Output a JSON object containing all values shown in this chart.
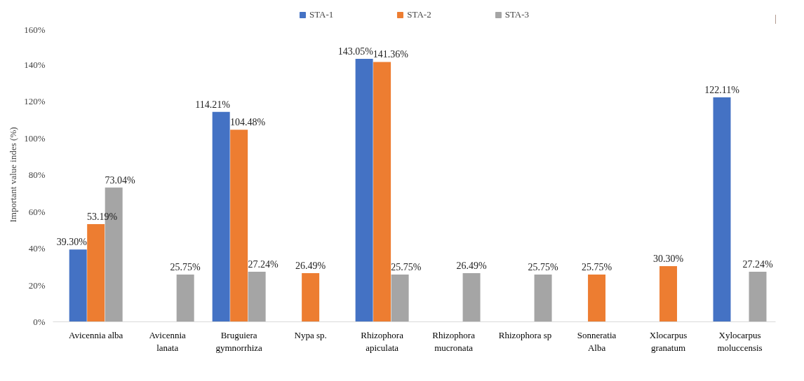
{
  "chart_data": {
    "type": "bar",
    "ylabel": "Important value indes (%)",
    "categories": [
      "Avicennia alba",
      "Avicennia lanata",
      "Bruguiera gymnorrhiza",
      "Nypa sp.",
      "Rhizophora apiculata",
      "Rhizophora mucronata",
      "Rhizophora sp",
      "Sonneratia Alba",
      "Xlocarpus granatum",
      "Xylocarpus moluccensis"
    ],
    "series": [
      {
        "name": "STA-1",
        "color": "#4472c4",
        "values": [
          39.3,
          null,
          114.21,
          null,
          143.05,
          null,
          null,
          null,
          null,
          122.11
        ],
        "value_labels": [
          "39.30%",
          null,
          "114.21%",
          null,
          "143.05%",
          null,
          null,
          null,
          null,
          "122.11%"
        ]
      },
      {
        "name": "STA-2",
        "color": "#ed7d31",
        "values": [
          53.19,
          null,
          104.48,
          26.49,
          141.36,
          null,
          null,
          25.75,
          30.3,
          null
        ],
        "value_labels": [
          "53.19%",
          null,
          "104.48%",
          "26.49%",
          "141.36%",
          null,
          null,
          "25.75%",
          "30.30%",
          null
        ]
      },
      {
        "name": "STA-3",
        "color": "#a5a5a5",
        "values": [
          73.04,
          25.75,
          27.24,
          null,
          25.75,
          26.49,
          25.75,
          null,
          null,
          27.24
        ],
        "value_labels": [
          "73.04%",
          "25.75%",
          "27.24%",
          null,
          "25.75%",
          "26.49%",
          "25.75%",
          null,
          null,
          "27.24%"
        ]
      }
    ],
    "ylim": [
      0,
      160
    ],
    "yticks": [
      {
        "value": 0,
        "label": "0%"
      },
      {
        "value": 20,
        "label": "20%"
      },
      {
        "value": 40,
        "label": "40%"
      },
      {
        "value": 60,
        "label": "60%"
      },
      {
        "value": 80,
        "label": "80%"
      },
      {
        "value": 100,
        "label": "100%"
      },
      {
        "value": 120,
        "label": "120%"
      },
      {
        "value": 140,
        "label": "140%"
      },
      {
        "value": 160,
        "label": "160%"
      }
    ],
    "legend": "top",
    "grid": false
  }
}
